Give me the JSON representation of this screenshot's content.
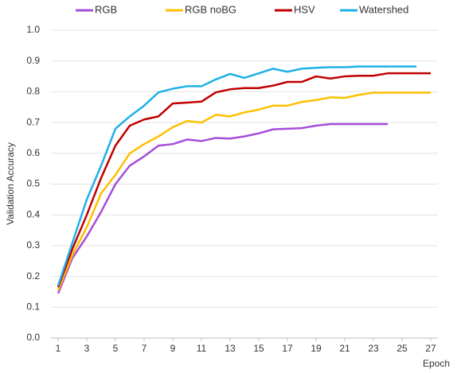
{
  "chart_data": {
    "type": "line",
    "x": [
      1,
      2,
      3,
      4,
      5,
      6,
      7,
      8,
      9,
      10,
      11,
      12,
      13,
      14,
      15,
      16,
      17,
      18,
      19,
      20,
      21,
      22,
      23,
      24,
      25,
      26,
      27
    ],
    "xlim": [
      1,
      27
    ],
    "xticks": [
      1,
      3,
      5,
      7,
      9,
      11,
      13,
      15,
      17,
      19,
      21,
      23,
      25,
      27
    ],
    "ylim": [
      0,
      1
    ],
    "yticks": [
      {
        "value": 0,
        "label": "0.0"
      },
      0.1,
      0.2,
      0.3,
      0.4,
      0.5,
      0.6,
      0.7,
      0.8,
      0.9,
      {
        "value": 1,
        "label": "1.0"
      }
    ],
    "grid": true,
    "legend": "top",
    "xlabel": "Epoch",
    "ylabel": "Validation Accuracy",
    "series": [
      {
        "name": "RGB",
        "color": "#a64dd9",
        "values": [
          0.145,
          0.26,
          0.33,
          0.41,
          0.5,
          0.56,
          0.59,
          0.625,
          0.63,
          0.645,
          0.64,
          0.65,
          0.648,
          0.655,
          0.665,
          0.678,
          0.68,
          0.682,
          0.69,
          0.695,
          0.695,
          0.695,
          0.695,
          0.695,
          null,
          null,
          null
        ]
      },
      {
        "name": "RGB noBG",
        "color": "#ffc000",
        "values": [
          0.155,
          0.27,
          0.36,
          0.47,
          0.53,
          0.6,
          0.63,
          0.655,
          0.685,
          0.705,
          0.7,
          0.725,
          0.72,
          0.733,
          0.742,
          0.755,
          0.755,
          0.767,
          0.773,
          0.782,
          0.78,
          0.79,
          0.797,
          0.797,
          0.797,
          0.797,
          0.797
        ]
      },
      {
        "name": "HSV",
        "color": "#c00000",
        "values": [
          0.165,
          0.29,
          0.4,
          0.52,
          0.625,
          0.69,
          0.71,
          0.72,
          0.762,
          0.765,
          0.768,
          0.798,
          0.808,
          0.812,
          0.812,
          0.82,
          0.832,
          0.832,
          0.85,
          0.843,
          0.85,
          0.852,
          0.852,
          0.86,
          0.86,
          0.86,
          0.86
        ]
      },
      {
        "name": "Watershed",
        "color": "#1fb0e8",
        "values": [
          0.17,
          0.31,
          0.45,
          0.56,
          0.68,
          0.72,
          0.755,
          0.798,
          0.81,
          0.818,
          0.818,
          0.84,
          0.858,
          0.845,
          0.86,
          0.875,
          0.865,
          0.875,
          0.878,
          0.88,
          0.88,
          0.882,
          0.882,
          0.882,
          0.882,
          0.882,
          null
        ]
      }
    ]
  }
}
